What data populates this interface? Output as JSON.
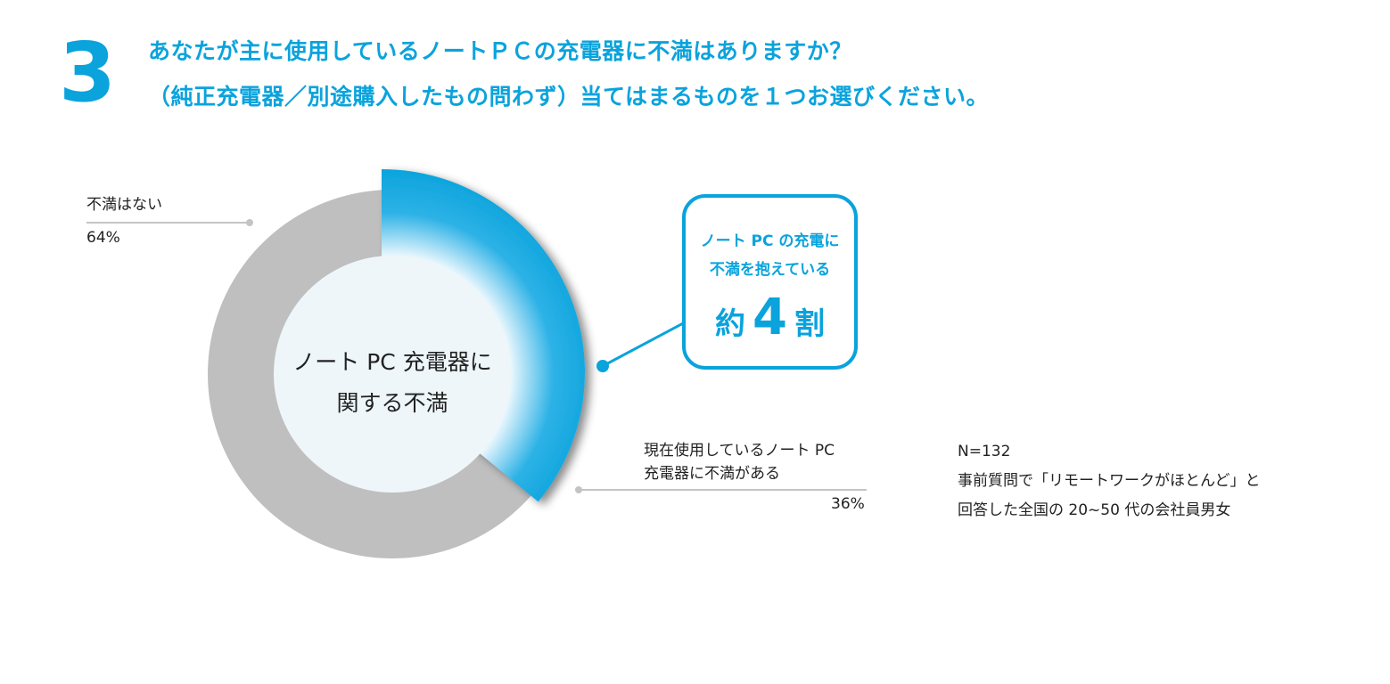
{
  "question": {
    "number": "3",
    "line1": "あなたが主に使用しているノートＰＣの充電器に不満はありますか？",
    "line2": "（純正充電器／別途購入したもの問わず）当てはまるものを１つお選びください。"
  },
  "chart_data": {
    "type": "pie",
    "variant": "donut",
    "center_label": [
      "ノート PC 充電器に",
      "関する不満"
    ],
    "slices": [
      {
        "label": "現在使用しているノート PC 充電器に不満がある",
        "label_lines": [
          "現在使用しているノート PC",
          "充電器に不満がある"
        ],
        "value": 36,
        "value_label": "36%",
        "color": "#0aa3dc"
      },
      {
        "label": "不満はない",
        "label_lines": [
          "不満はない"
        ],
        "value": 64,
        "value_label": "64%",
        "color": "#bfbfbf"
      }
    ]
  },
  "callout": {
    "line1": "ノート PC の充電に",
    "line2": "不満を抱えている",
    "prefix": "約",
    "number": "4",
    "suffix": "割"
  },
  "note": {
    "n": "N=132",
    "line1": "事前質問で「リモートワークがほとんど」と",
    "line2": "回答した全国の 20~50 代の会社員男女"
  },
  "colors": {
    "accent": "#0aa3dc",
    "other": "#bfbfbf",
    "center_fill": "#eef6fa"
  }
}
